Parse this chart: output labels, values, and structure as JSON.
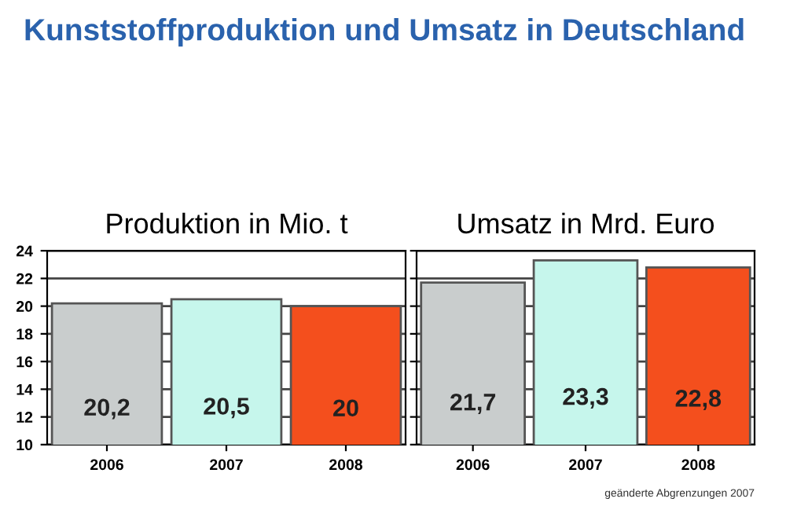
{
  "chart_data": [
    {
      "type": "bar",
      "title": "Produktion in Mio. t",
      "categories": [
        "2006",
        "2007",
        "2008"
      ],
      "values": [
        20.2,
        20.5,
        20
      ],
      "colors": [
        "#c9cdcd",
        "#c6f6ec",
        "#f44f1d"
      ],
      "value_labels": [
        "20,2",
        "20,5",
        "20"
      ],
      "ylim": [
        10,
        24
      ],
      "yticks": [
        10,
        12,
        14,
        16,
        18,
        20,
        22,
        24
      ],
      "grid": "y",
      "annotations": [
        "Kunststoffproduktion und Umsatz in Deutschland"
      ]
    },
    {
      "type": "bar",
      "title": "Umsatz in Mrd. Euro",
      "categories": [
        "2006",
        "2007",
        "2008"
      ],
      "values": [
        21.7,
        23.3,
        22.8
      ],
      "colors": [
        "#c9cdcd",
        "#c6f6ec",
        "#f44f1d"
      ],
      "value_labels": [
        "21,7",
        "23,3",
        "22,8"
      ],
      "ylim": [
        10,
        24
      ],
      "yticks": [
        10,
        12,
        14,
        16,
        18,
        20,
        22,
        24
      ],
      "grid": "y",
      "tick_labels": "x",
      "annotations": [
        "geänderte Abgrenzungen 2007"
      ]
    }
  ]
}
